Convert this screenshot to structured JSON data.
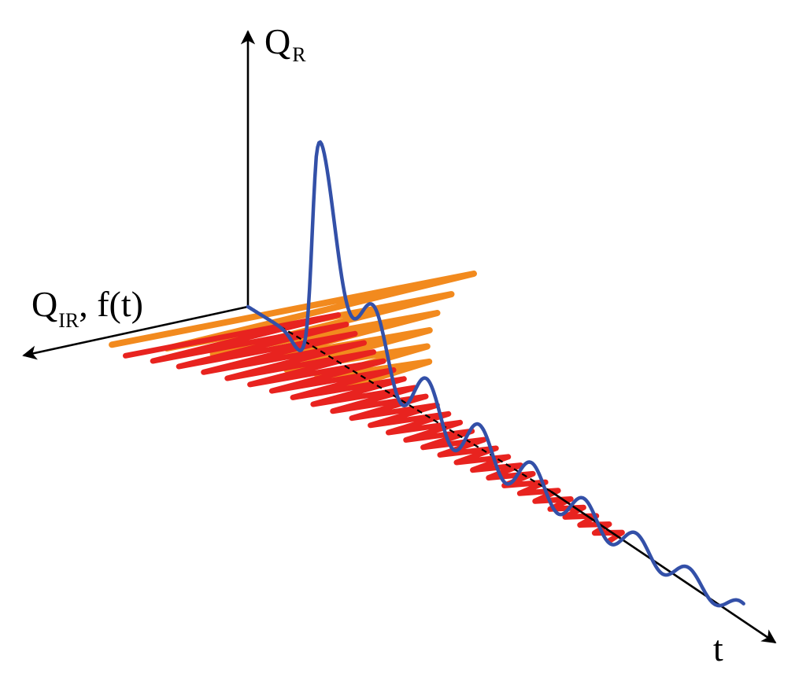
{
  "axes": {
    "vertical": {
      "main": "Q",
      "sub": "R"
    },
    "horizontal": {
      "main": "Q",
      "sub": "IR",
      "suffix": ", f(t)"
    },
    "time": {
      "label": "t"
    }
  },
  "colors": {
    "axis": "#000000",
    "q_r": "#3350A8",
    "q_ir": "#E8231F",
    "f_t": "#F28A1E"
  }
}
